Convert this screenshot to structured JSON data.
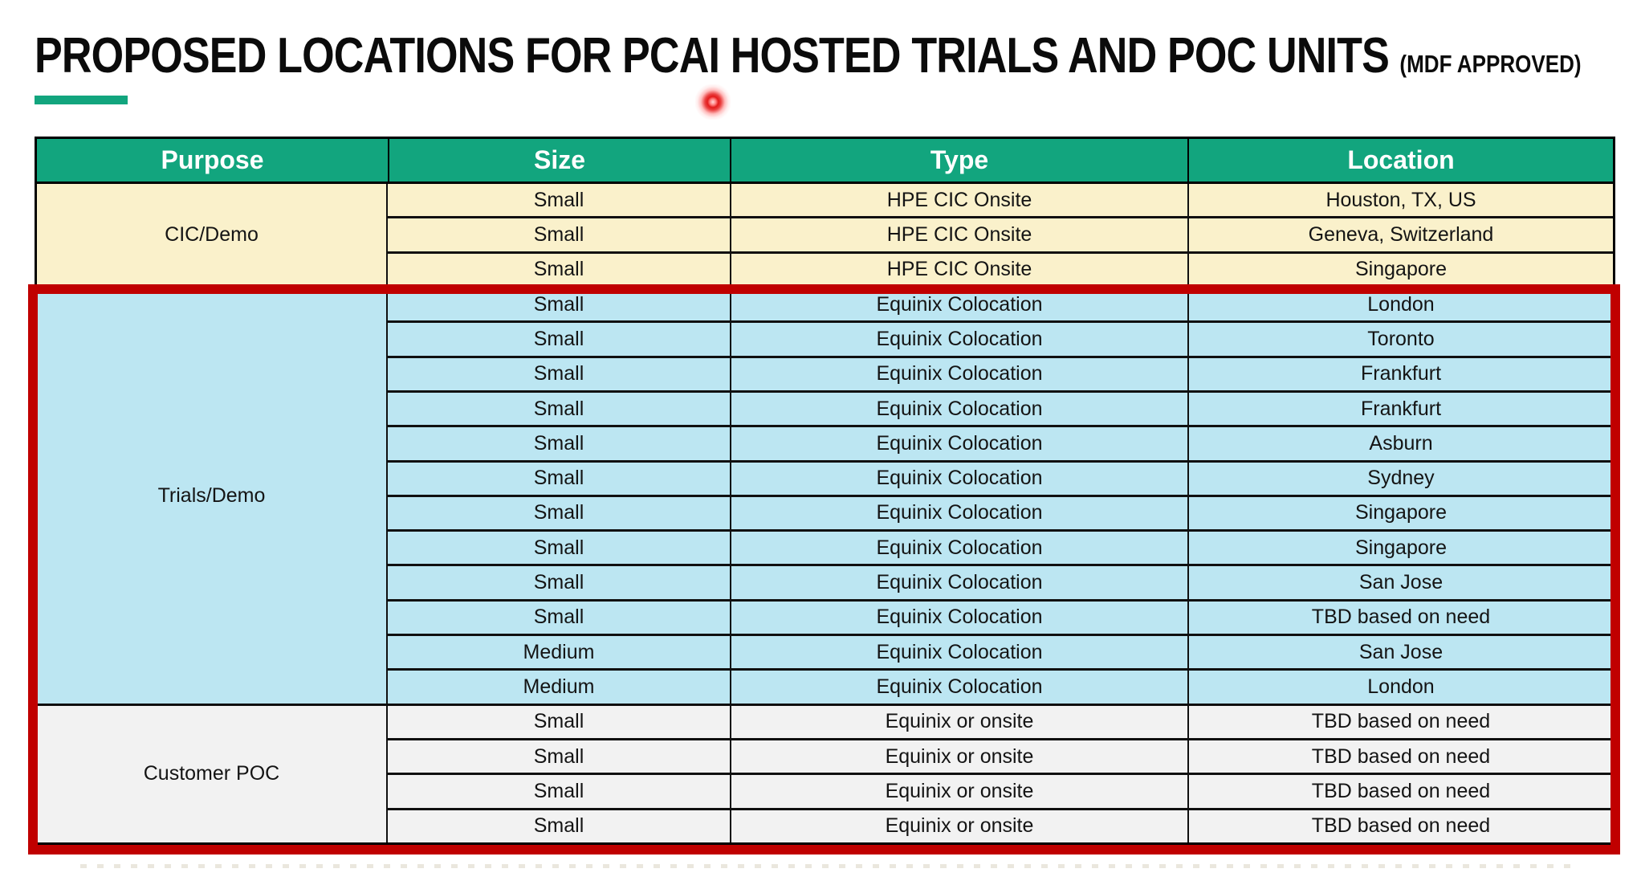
{
  "title": {
    "main": "PROPOSED LOCATIONS FOR PCAI HOSTED TRIALS AND POC UNITS",
    "suffix": "(MDF APPROVED)"
  },
  "colors": {
    "header_green": "#12A57E",
    "accent_green": "#12A57E",
    "highlight_red": "#C00000",
    "cic_demo_bg": "#FAF1CB",
    "trials_demo_bg": "#BCE6F2",
    "customer_poc_bg": "#F2F2F2"
  },
  "table": {
    "headers": [
      "Purpose",
      "Size",
      "Type",
      "Location"
    ],
    "sections": [
      {
        "purpose": "CIC/Demo",
        "bg": "#FAF1CB",
        "rows": [
          [
            "Small",
            "HPE CIC Onsite",
            "Houston, TX, US"
          ],
          [
            "Small",
            "HPE CIC Onsite",
            "Geneva, Switzerland"
          ],
          [
            "Small",
            "HPE CIC Onsite",
            "Singapore"
          ]
        ]
      },
      {
        "purpose": "Trials/Demo",
        "bg": "#BCE6F2",
        "rows": [
          [
            "Small",
            "Equinix Colocation",
            "London"
          ],
          [
            "Small",
            "Equinix Colocation",
            "Toronto"
          ],
          [
            "Small",
            "Equinix Colocation",
            "Frankfurt"
          ],
          [
            "Small",
            "Equinix Colocation",
            "Frankfurt"
          ],
          [
            "Small",
            "Equinix Colocation",
            "Asburn"
          ],
          [
            "Small",
            "Equinix Colocation",
            "Sydney"
          ],
          [
            "Small",
            "Equinix Colocation",
            "Singapore"
          ],
          [
            "Small",
            "Equinix Colocation",
            "Singapore"
          ],
          [
            "Small",
            "Equinix Colocation",
            "San Jose"
          ],
          [
            "Small",
            "Equinix Colocation",
            "TBD based on need"
          ],
          [
            "Medium",
            "Equinix Colocation",
            "San Jose"
          ],
          [
            "Medium",
            "Equinix Colocation",
            "London"
          ]
        ]
      },
      {
        "purpose": "Customer POC",
        "bg": "#F2F2F2",
        "rows": [
          [
            "Small",
            "Equinix or onsite",
            "TBD based on need"
          ],
          [
            "Small",
            "Equinix or onsite",
            "TBD based on need"
          ],
          [
            "Small",
            "Equinix or onsite",
            "TBD based on need"
          ],
          [
            "Small",
            "Equinix or onsite",
            "TBD based on need"
          ]
        ]
      }
    ]
  }
}
